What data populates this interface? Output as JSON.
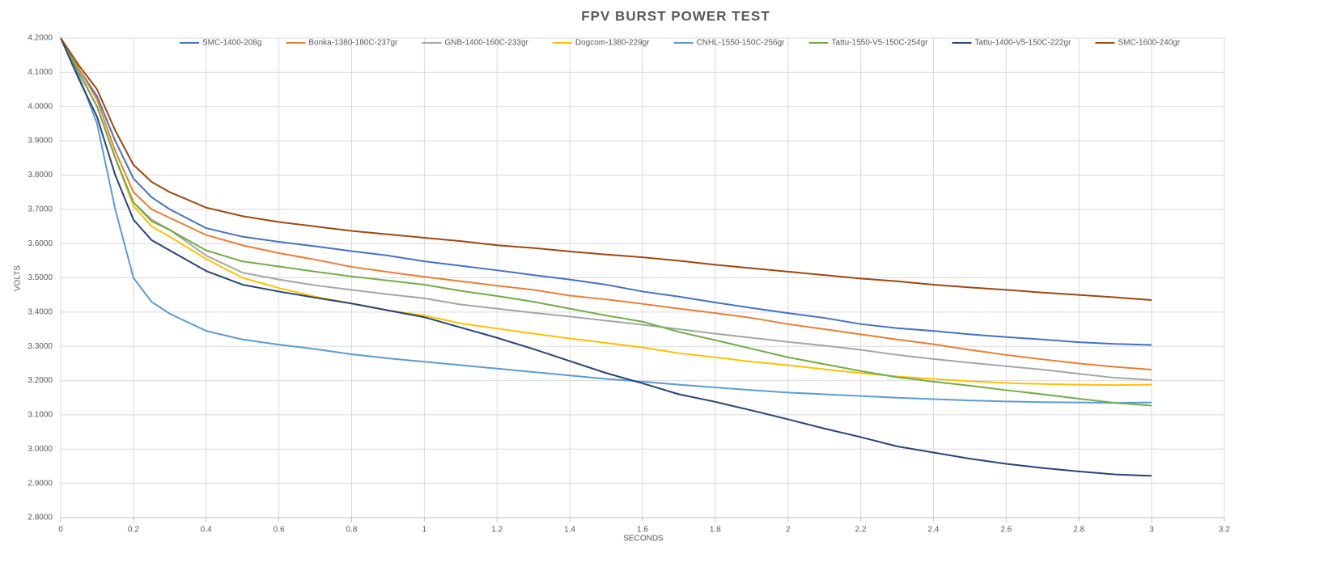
{
  "chart_data": {
    "type": "line",
    "title": "FPV BURST POWER TEST",
    "x_label": "SECONDS",
    "y_label": "VOLTS",
    "grid": true,
    "legend": "top",
    "xlim": [
      0,
      3.2
    ],
    "ylim": [
      2.8,
      4.2
    ],
    "xticks": [
      0,
      0.2,
      0.4,
      0.6,
      0.8,
      1,
      1.2,
      1.4,
      1.6,
      1.8,
      2,
      2.2,
      2.4,
      2.6,
      2.8,
      3,
      3.2
    ],
    "yticks": [
      {
        "value": 2.8,
        "label": "2.8000"
      },
      {
        "value": 2.9,
        "label": "2.9000"
      },
      {
        "value": 3.0,
        "label": "3.0000"
      },
      {
        "value": 3.1,
        "label": "3.1000"
      },
      {
        "value": 3.2,
        "label": "3.2000"
      },
      {
        "value": 3.3,
        "label": "3.3000"
      },
      {
        "value": 3.4,
        "label": "3.4000"
      },
      {
        "value": 3.5,
        "label": "3.5000"
      },
      {
        "value": 3.6,
        "label": "3.6000"
      },
      {
        "value": 3.7,
        "label": "3.7000"
      },
      {
        "value": 3.8,
        "label": "3.8000"
      },
      {
        "value": 3.9,
        "label": "3.9000"
      },
      {
        "value": 4.0,
        "label": "4.0000"
      },
      {
        "value": 4.1,
        "label": "4.1000"
      },
      {
        "value": 4.2,
        "label": "4.2000"
      }
    ],
    "x": [
      0,
      0.05,
      0.1,
      0.15,
      0.2,
      0.25,
      0.3,
      0.4,
      0.5,
      0.6,
      0.7,
      0.8,
      0.9,
      1.0,
      1.1,
      1.2,
      1.3,
      1.4,
      1.5,
      1.6,
      1.7,
      1.8,
      1.9,
      2.0,
      2.1,
      2.2,
      2.3,
      2.4,
      2.5,
      2.6,
      2.7,
      2.8,
      2.9,
      3.0
    ],
    "series": [
      {
        "name": "SMC-1400-208g",
        "color": "#4472c4",
        "values": [
          4.2,
          4.11,
          4.03,
          3.9,
          3.79,
          3.735,
          3.7,
          3.645,
          3.62,
          3.605,
          3.592,
          3.578,
          3.565,
          3.548,
          3.535,
          3.522,
          3.508,
          3.495,
          3.48,
          3.46,
          3.445,
          3.428,
          3.412,
          3.397,
          3.383,
          3.365,
          3.353,
          3.345,
          3.335,
          3.327,
          3.32,
          3.312,
          3.307,
          3.304
        ]
      },
      {
        "name": "Bonka-1380-180C-237gr",
        "color": "#ed7d31",
        "values": [
          4.2,
          4.11,
          4.02,
          3.87,
          3.75,
          3.7,
          3.675,
          3.625,
          3.595,
          3.572,
          3.553,
          3.532,
          3.517,
          3.503,
          3.49,
          3.477,
          3.465,
          3.448,
          3.437,
          3.424,
          3.41,
          3.397,
          3.383,
          3.365,
          3.35,
          3.335,
          3.32,
          3.306,
          3.29,
          3.275,
          3.262,
          3.25,
          3.24,
          3.232
        ]
      },
      {
        "name": "GNB-1400-160C-233gr",
        "color": "#a5a5a5",
        "values": [
          4.2,
          4.1,
          4.0,
          3.85,
          3.72,
          3.67,
          3.64,
          3.565,
          3.515,
          3.495,
          3.478,
          3.465,
          3.452,
          3.44,
          3.422,
          3.41,
          3.398,
          3.387,
          3.375,
          3.363,
          3.35,
          3.337,
          3.325,
          3.313,
          3.302,
          3.29,
          3.275,
          3.263,
          3.252,
          3.242,
          3.232,
          3.22,
          3.208,
          3.202
        ]
      },
      {
        "name": "Dogcom-1380-229gr",
        "color": "#ffc000",
        "values": [
          4.2,
          4.1,
          4.0,
          3.85,
          3.71,
          3.65,
          3.62,
          3.555,
          3.5,
          3.47,
          3.445,
          3.425,
          3.405,
          3.39,
          3.367,
          3.352,
          3.337,
          3.323,
          3.31,
          3.297,
          3.28,
          3.268,
          3.255,
          3.245,
          3.233,
          3.222,
          3.212,
          3.205,
          3.198,
          3.193,
          3.19,
          3.188,
          3.187,
          3.188
        ]
      },
      {
        "name": "CNHL-1550-150C-256gr",
        "color": "#5b9bd5",
        "values": [
          4.2,
          4.09,
          3.95,
          3.7,
          3.5,
          3.43,
          3.395,
          3.345,
          3.32,
          3.305,
          3.292,
          3.277,
          3.265,
          3.255,
          3.245,
          3.235,
          3.225,
          3.215,
          3.205,
          3.197,
          3.188,
          3.18,
          3.172,
          3.165,
          3.16,
          3.155,
          3.15,
          3.146,
          3.142,
          3.139,
          3.137,
          3.136,
          3.135,
          3.136
        ]
      },
      {
        "name": "Tattu-1550-V5-150C-254gr",
        "color": "#70ad47",
        "values": [
          4.2,
          4.1,
          4.0,
          3.85,
          3.72,
          3.665,
          3.64,
          3.58,
          3.548,
          3.533,
          3.518,
          3.504,
          3.492,
          3.48,
          3.462,
          3.447,
          3.43,
          3.41,
          3.39,
          3.372,
          3.342,
          3.318,
          3.293,
          3.268,
          3.248,
          3.228,
          3.21,
          3.197,
          3.185,
          3.172,
          3.16,
          3.147,
          3.135,
          3.127
        ]
      },
      {
        "name": "Tattu-1400-V5-150C-222gr",
        "color": "#264478",
        "values": [
          4.2,
          4.08,
          3.97,
          3.8,
          3.67,
          3.61,
          3.58,
          3.52,
          3.48,
          3.46,
          3.442,
          3.425,
          3.405,
          3.385,
          3.355,
          3.325,
          3.292,
          3.257,
          3.222,
          3.192,
          3.16,
          3.138,
          3.113,
          3.087,
          3.06,
          3.035,
          3.008,
          2.99,
          2.972,
          2.957,
          2.945,
          2.935,
          2.926,
          2.922
        ]
      },
      {
        "name": "SMC-1600-240gr",
        "color": "#9e480e",
        "values": [
          4.2,
          4.12,
          4.05,
          3.93,
          3.83,
          3.78,
          3.75,
          3.705,
          3.68,
          3.663,
          3.65,
          3.637,
          3.627,
          3.617,
          3.607,
          3.595,
          3.587,
          3.577,
          3.568,
          3.56,
          3.55,
          3.538,
          3.528,
          3.518,
          3.508,
          3.498,
          3.49,
          3.48,
          3.472,
          3.465,
          3.457,
          3.45,
          3.443,
          3.435
        ]
      }
    ]
  }
}
